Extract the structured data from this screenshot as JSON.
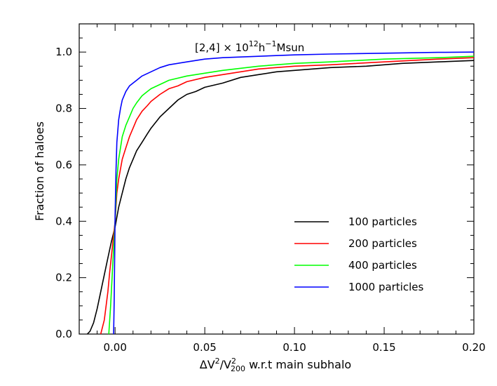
{
  "chart_data": {
    "type": "line",
    "title": "",
    "annotation": {
      "base": "[2,4] × 10",
      "exp1": "12",
      "mid": "h",
      "exp2": "−1",
      "tail": "Msun"
    },
    "xlabel": {
      "p1": "ΔV",
      "sup1": "2",
      "p2": "/V",
      "sup2": "2",
      "sub2": "200",
      "p3": " w.r.t main subhalo"
    },
    "ylabel": "Fraction of haloes",
    "xlim": [
      -0.02,
      0.2
    ],
    "ylim": [
      0.0,
      1.1
    ],
    "xticks": [
      0.0,
      0.05,
      0.1,
      0.15,
      0.2
    ],
    "xtick_labels": [
      "0.00",
      "0.05",
      "0.10",
      "0.15",
      "0.20"
    ],
    "yticks": [
      0.0,
      0.2,
      0.4,
      0.6,
      0.8,
      1.0
    ],
    "ytick_labels": [
      "0.0",
      "0.2",
      "0.4",
      "0.6",
      "0.8",
      "1.0"
    ],
    "legend_position": "lower-right",
    "series": [
      {
        "name": "100 particles",
        "color": "#000000",
        "x": [
          -0.0155,
          -0.014,
          -0.012,
          -0.01,
          -0.008,
          -0.006,
          -0.004,
          -0.002,
          0.0,
          0.002,
          0.004,
          0.006,
          0.008,
          0.01,
          0.012,
          0.015,
          0.018,
          0.02,
          0.025,
          0.03,
          0.035,
          0.04,
          0.045,
          0.05,
          0.06,
          0.07,
          0.08,
          0.09,
          0.1,
          0.12,
          0.14,
          0.16,
          0.18,
          0.2
        ],
        "y": [
          0.0,
          0.01,
          0.04,
          0.09,
          0.15,
          0.21,
          0.27,
          0.33,
          0.38,
          0.45,
          0.5,
          0.55,
          0.59,
          0.62,
          0.65,
          0.68,
          0.71,
          0.73,
          0.77,
          0.8,
          0.83,
          0.85,
          0.86,
          0.875,
          0.89,
          0.91,
          0.92,
          0.93,
          0.935,
          0.945,
          0.95,
          0.96,
          0.965,
          0.97
        ]
      },
      {
        "name": "200 particles",
        "color": "#ff0000",
        "x": [
          -0.008,
          -0.006,
          -0.004,
          -0.003,
          -0.002,
          -0.001,
          0.0,
          0.001,
          0.002,
          0.004,
          0.006,
          0.008,
          0.01,
          0.012,
          0.015,
          0.018,
          0.02,
          0.025,
          0.03,
          0.035,
          0.04,
          0.05,
          0.06,
          0.07,
          0.08,
          0.1,
          0.12,
          0.15,
          0.18,
          0.2
        ],
        "y": [
          0.0,
          0.05,
          0.15,
          0.22,
          0.28,
          0.34,
          0.4,
          0.5,
          0.55,
          0.62,
          0.66,
          0.7,
          0.73,
          0.76,
          0.79,
          0.81,
          0.825,
          0.85,
          0.87,
          0.88,
          0.895,
          0.91,
          0.92,
          0.93,
          0.94,
          0.95,
          0.955,
          0.965,
          0.975,
          0.98
        ]
      },
      {
        "name": "400 particles",
        "color": "#00ff00",
        "x": [
          -0.0035,
          -0.0025,
          -0.0015,
          -0.0005,
          0.0,
          0.001,
          0.002,
          0.004,
          0.006,
          0.008,
          0.01,
          0.012,
          0.015,
          0.018,
          0.02,
          0.025,
          0.03,
          0.04,
          0.05,
          0.06,
          0.08,
          0.1,
          0.12,
          0.15,
          0.18,
          0.2
        ],
        "y": [
          0.0,
          0.1,
          0.22,
          0.34,
          0.4,
          0.55,
          0.62,
          0.7,
          0.74,
          0.77,
          0.8,
          0.82,
          0.845,
          0.86,
          0.87,
          0.885,
          0.9,
          0.915,
          0.925,
          0.935,
          0.95,
          0.96,
          0.965,
          0.975,
          0.98,
          0.985
        ]
      },
      {
        "name": "1000 particles",
        "color": "#0000ff",
        "x": [
          -0.0008,
          -0.0005,
          -0.0002,
          0.0,
          0.0005,
          0.001,
          0.002,
          0.003,
          0.004,
          0.006,
          0.008,
          0.01,
          0.012,
          0.015,
          0.02,
          0.025,
          0.03,
          0.04,
          0.05,
          0.06,
          0.08,
          0.1,
          0.12,
          0.15,
          0.18,
          0.2
        ],
        "y": [
          0.0,
          0.12,
          0.3,
          0.42,
          0.58,
          0.68,
          0.76,
          0.8,
          0.83,
          0.86,
          0.88,
          0.89,
          0.9,
          0.915,
          0.93,
          0.945,
          0.955,
          0.965,
          0.975,
          0.98,
          0.985,
          0.99,
          0.993,
          0.996,
          0.999,
          1.0
        ]
      }
    ]
  }
}
